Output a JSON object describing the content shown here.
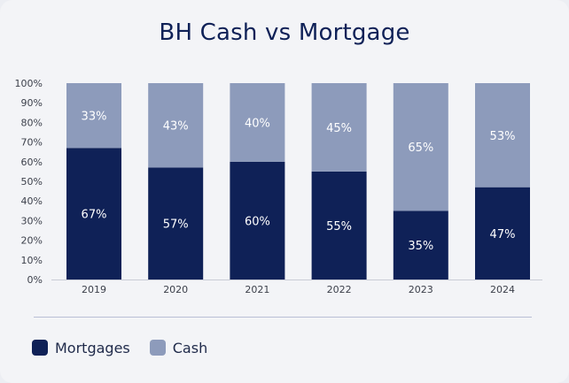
{
  "title": "BH Cash vs Mortgage",
  "colors": {
    "mortgages": "#0f2157",
    "cash": "#8d9bbb",
    "axis_text": "#3b3f4a"
  },
  "legend": [
    {
      "label": "Mortgages",
      "color": "#0f2157"
    },
    {
      "label": "Cash",
      "color": "#8d9bbb"
    }
  ],
  "chart_data": {
    "type": "bar",
    "stacked": true,
    "title": "BH Cash vs Mortgage",
    "categories": [
      "2019",
      "2020",
      "2021",
      "2022",
      "2023",
      "2024"
    ],
    "series": [
      {
        "name": "Mortgages",
        "values": [
          67,
          57,
          60,
          55,
          35,
          47
        ],
        "labels": [
          "67%",
          "57%",
          "60%",
          "55%",
          "35%",
          "47%"
        ]
      },
      {
        "name": "Cash",
        "values": [
          33,
          43,
          40,
          45,
          65,
          53
        ],
        "labels": [
          "33%",
          "43%",
          "40%",
          "45%",
          "65%",
          "53%"
        ]
      }
    ],
    "ylim": [
      0,
      100
    ],
    "yticks": [
      "0%",
      "10%",
      "20%",
      "30%",
      "40%",
      "50%",
      "60%",
      "70%",
      "80%",
      "90%",
      "100%"
    ],
    "grid": false,
    "legend_position": "bottom-left"
  }
}
